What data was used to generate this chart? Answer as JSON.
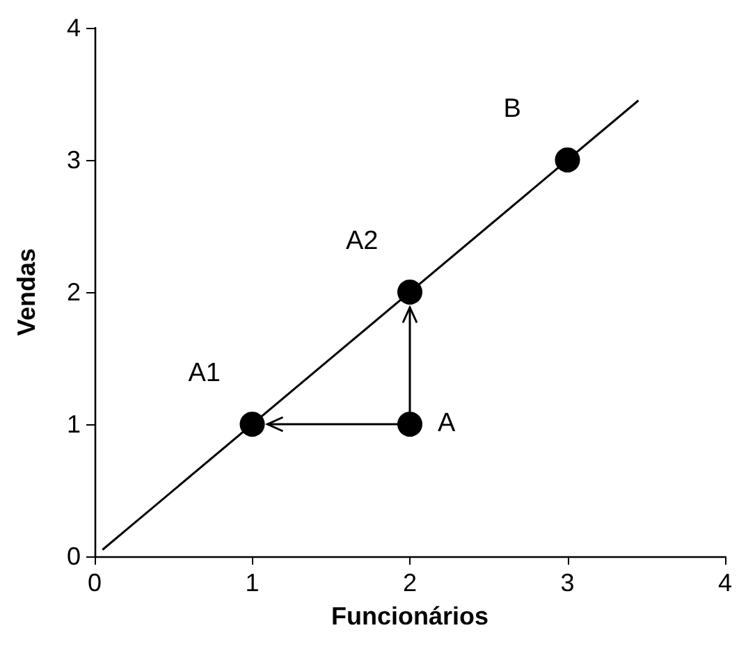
{
  "chart_data": {
    "type": "scatter",
    "xlabel": "Funcionários",
    "ylabel": "Vendas",
    "xlim": [
      0,
      4
    ],
    "ylim": [
      0,
      4
    ],
    "xticks": [
      0,
      1,
      2,
      3,
      4
    ],
    "yticks": [
      0,
      1,
      2,
      3,
      4
    ],
    "grid": false,
    "marker": "circle",
    "series": [
      {
        "color": "#000000",
        "x": [
          1,
          2,
          2,
          3
        ],
        "values": [
          1,
          1,
          2,
          3
        ]
      },
      {
        "type": "line",
        "color": "#000000",
        "marker": "none",
        "x": [
          0.05,
          3.45
        ],
        "values": [
          0.05,
          3.45
        ]
      }
    ],
    "annotations": [
      {
        "text": "A1",
        "x": 1,
        "y": 1
      },
      {
        "text": "A",
        "x": 2,
        "y": 1
      },
      {
        "text": "A2",
        "x": 2,
        "y": 2
      },
      {
        "text": "B",
        "x": 3,
        "y": 3
      }
    ]
  }
}
